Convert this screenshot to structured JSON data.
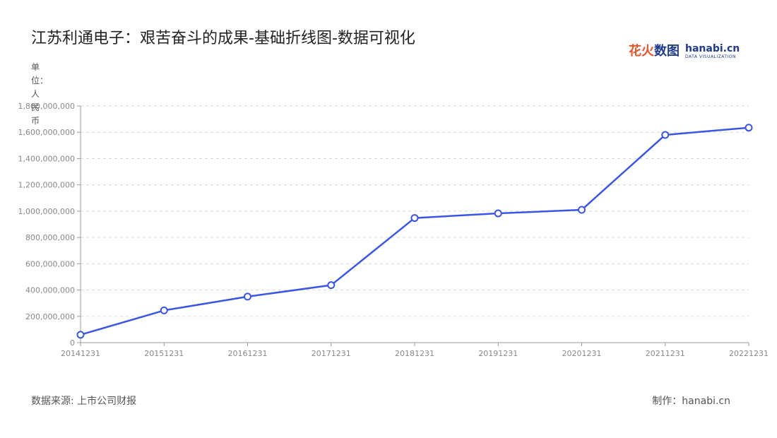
{
  "title": "江苏利通电子：艰苦奋斗的成果-基础折线图-数据可视化",
  "brand": {
    "name_cn": "花火数图",
    "name_en": "hanabi.cn",
    "tagline": "DATA VISUALIZATION"
  },
  "unit_label": "单位：人民币",
  "footer": {
    "source": "数据来源: 上市公司财报",
    "maker": "制作：hanabi.cn"
  },
  "colors": {
    "line": "#3b55e6",
    "grid": "#d9d9d9",
    "axis": "#999999",
    "tick_text": "#888888"
  },
  "chart_data": {
    "type": "line",
    "title": "江苏利通电子：艰苦奋斗的成果-基础折线图-数据可视化",
    "ylabel": "单位：人民币",
    "xlabel": "",
    "categories": [
      "20141231",
      "20151231",
      "20161231",
      "20171231",
      "20181231",
      "20191231",
      "20201231",
      "20211231",
      "20221231"
    ],
    "series": [
      {
        "values": [
          60000000,
          245000000,
          350000000,
          437000000,
          948000000,
          983000000,
          1010000000,
          1580000000,
          1635000000
        ]
      }
    ],
    "ylim": [
      0,
      1800000000
    ],
    "yticks": [
      0,
      200000000,
      400000000,
      600000000,
      800000000,
      1000000000,
      1200000000,
      1400000000,
      1600000000,
      1800000000
    ],
    "ytick_labels": [
      "0",
      "200,000,000",
      "400,000,000",
      "600,000,000",
      "800,000,000",
      "1,000,000,000",
      "1,200,000,000",
      "1,400,000,000",
      "1,600,000,000",
      "1,800,000,000"
    ],
    "grid": true,
    "legend": "none",
    "markers": "hollow-circle"
  }
}
